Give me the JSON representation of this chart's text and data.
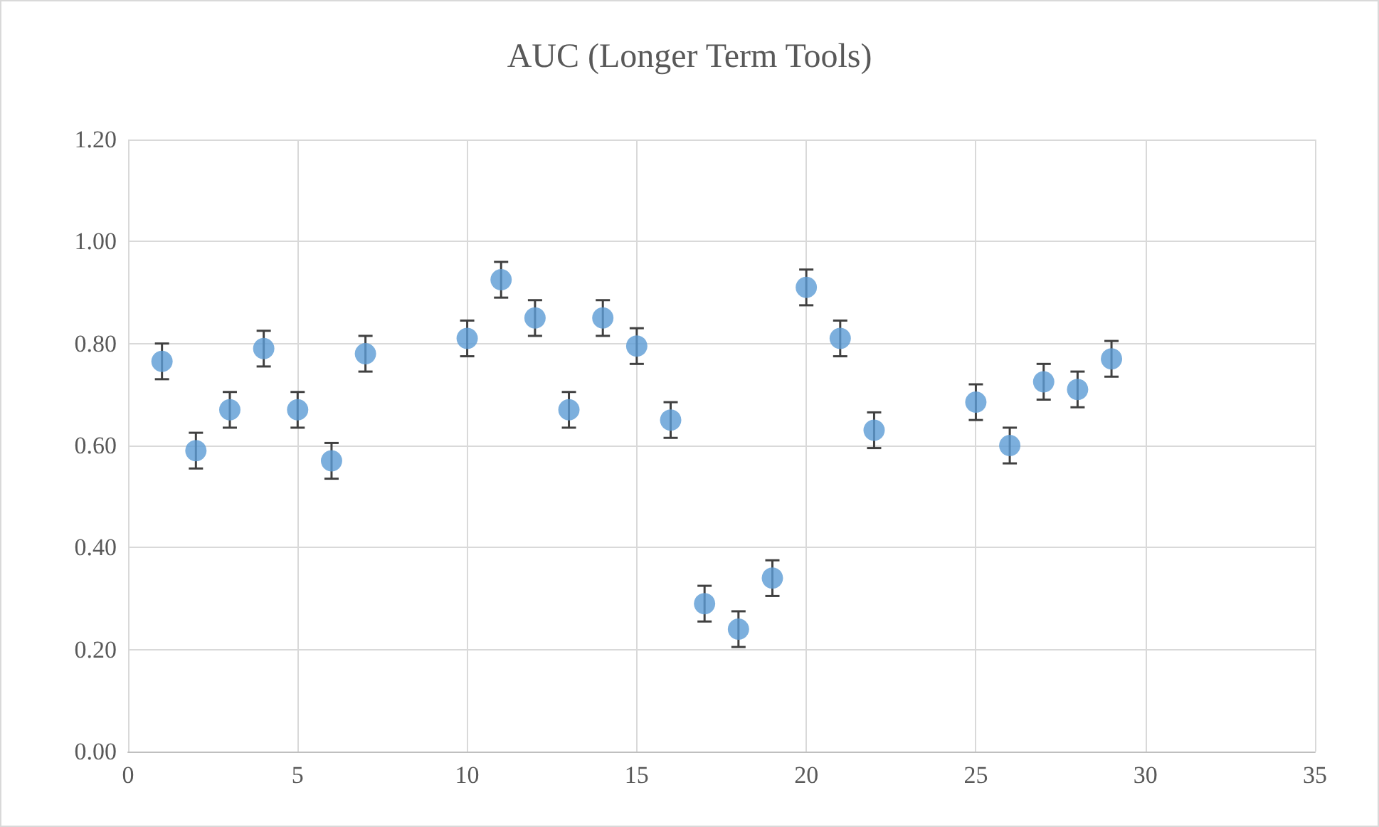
{
  "chart_data": {
    "type": "scatter",
    "title": "AUC (Longer Term Tools)",
    "x": [
      1,
      2,
      3,
      4,
      5,
      6,
      7,
      10,
      11,
      12,
      13,
      14,
      15,
      16,
      17,
      18,
      19,
      20,
      21,
      22,
      25,
      26,
      27,
      28,
      29
    ],
    "values": [
      0.765,
      0.59,
      0.67,
      0.79,
      0.67,
      0.57,
      0.78,
      0.81,
      0.925,
      0.85,
      0.67,
      0.85,
      0.795,
      0.65,
      0.29,
      0.24,
      0.34,
      0.91,
      0.81,
      0.63,
      0.685,
      0.6,
      0.725,
      0.71,
      0.77
    ],
    "errors": [
      0.035,
      0.035,
      0.035,
      0.035,
      0.035,
      0.035,
      0.035,
      0.035,
      0.035,
      0.035,
      0.035,
      0.035,
      0.035,
      0.035,
      0.035,
      0.035,
      0.035,
      0.035,
      0.035,
      0.035,
      0.035,
      0.035,
      0.035,
      0.035,
      0.035
    ],
    "color": "#5b9bd5",
    "marker": "circle",
    "xlim": [
      0,
      35
    ],
    "xticks": [
      0,
      5,
      10,
      15,
      20,
      25,
      30,
      35
    ],
    "ylim": [
      0,
      1.2
    ],
    "yticks": [
      {
        "value": 0,
        "label": "0.00"
      },
      {
        "value": 0.2,
        "label": "0.20"
      },
      {
        "value": 0.4,
        "label": "0.40"
      },
      {
        "value": 0.6,
        "label": "0.60"
      },
      {
        "value": 0.8,
        "label": "0.80"
      },
      {
        "value": 1,
        "label": "1.00"
      },
      {
        "value": 1.2,
        "label": "1.20"
      }
    ],
    "grid": true
  }
}
